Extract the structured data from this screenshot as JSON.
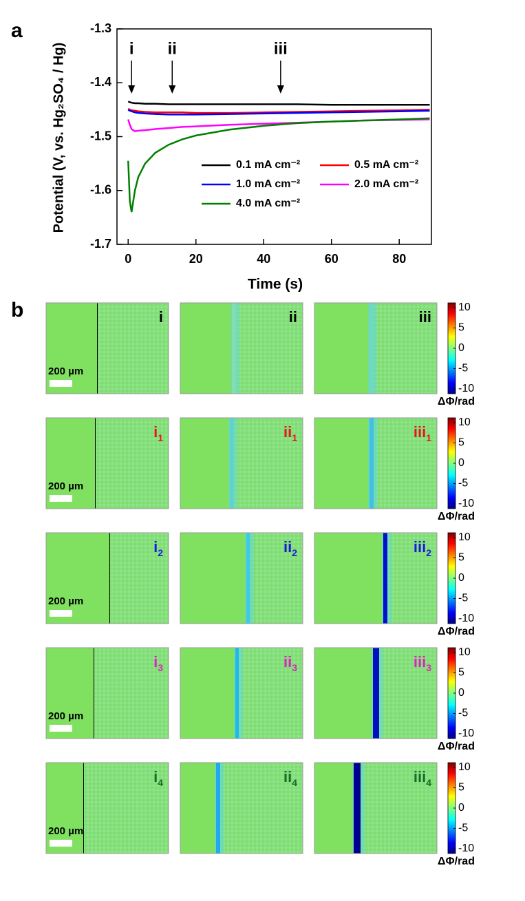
{
  "panel_labels": [
    "a",
    "b"
  ],
  "chart_data": {
    "type": "line",
    "ylabel": "Potential (V, vs. Hg₂SO₄ / Hg)",
    "xlabel": "Time (s)",
    "x": [
      0,
      0.5,
      1,
      2,
      3,
      5,
      8,
      12,
      16,
      20,
      30,
      40,
      50,
      60,
      70,
      80,
      89
    ],
    "series": [
      {
        "name": "0.1 mA cm⁻²",
        "color": "#000000",
        "values": [
          -1.435,
          -1.436,
          -1.437,
          -1.438,
          -1.438,
          -1.439,
          -1.439,
          -1.44,
          -1.44,
          -1.44,
          -1.44,
          -1.44,
          -1.44,
          -1.441,
          -1.441,
          -1.441,
          -1.441
        ]
      },
      {
        "name": "0.5 mA cm⁻²",
        "color": "#ff0000",
        "values": [
          -1.448,
          -1.45,
          -1.451,
          -1.452,
          -1.453,
          -1.454,
          -1.455,
          -1.455,
          -1.455,
          -1.456,
          -1.456,
          -1.455,
          -1.454,
          -1.453,
          -1.452,
          -1.451,
          -1.45
        ]
      },
      {
        "name": "1.0 mA cm⁻²",
        "color": "#0000ff",
        "values": [
          -1.45,
          -1.452,
          -1.453,
          -1.455,
          -1.456,
          -1.457,
          -1.458,
          -1.459,
          -1.459,
          -1.459,
          -1.458,
          -1.457,
          -1.456,
          -1.455,
          -1.454,
          -1.453,
          -1.452
        ]
      },
      {
        "name": "2.0 mA cm⁻²",
        "color": "#ff00ff",
        "values": [
          -1.468,
          -1.478,
          -1.486,
          -1.49,
          -1.489,
          -1.488,
          -1.486,
          -1.484,
          -1.482,
          -1.481,
          -1.478,
          -1.476,
          -1.474,
          -1.472,
          -1.47,
          -1.469,
          -1.468
        ]
      },
      {
        "name": "4.0 mA cm⁻²",
        "color": "#008000",
        "values": [
          -1.545,
          -1.62,
          -1.64,
          -1.6,
          -1.575,
          -1.55,
          -1.53,
          -1.515,
          -1.505,
          -1.498,
          -1.487,
          -1.48,
          -1.475,
          -1.472,
          -1.47,
          -1.468,
          -1.466
        ]
      }
    ],
    "xlim": [
      -3.3,
      89.5
    ],
    "xticks": [
      0,
      20,
      40,
      60,
      80
    ],
    "ylim": [
      -1.7,
      -1.3
    ],
    "yticks": [
      -1.7,
      -1.6,
      -1.5,
      -1.4,
      -1.3
    ],
    "annotations": [
      {
        "text": "i",
        "x": 1
      },
      {
        "text": "ii",
        "x": 13
      },
      {
        "text": "iii",
        "x": 45
      }
    ]
  },
  "images": {
    "scale_bar": "200 µm",
    "colorbar": {
      "range": [
        -10,
        10
      ],
      "ticks": [
        10,
        5,
        0,
        -5,
        -10
      ],
      "label": "ΔΦ/rad"
    },
    "rows": [
      {
        "color": "#000000",
        "labels": [
          "i",
          "ii",
          "iii"
        ]
      },
      {
        "color": "#e8141c",
        "labels": [
          "i",
          "ii",
          "iii"
        ],
        "sub": "1"
      },
      {
        "color": "#1a1adb",
        "labels": [
          "i",
          "ii",
          "iii"
        ],
        "sub": "2"
      },
      {
        "color": "#e020c0",
        "labels": [
          "i",
          "ii",
          "iii"
        ],
        "sub": "3"
      },
      {
        "color": "#1a6b2a",
        "labels": [
          "i",
          "ii",
          "iii"
        ],
        "sub": "4"
      }
    ]
  }
}
